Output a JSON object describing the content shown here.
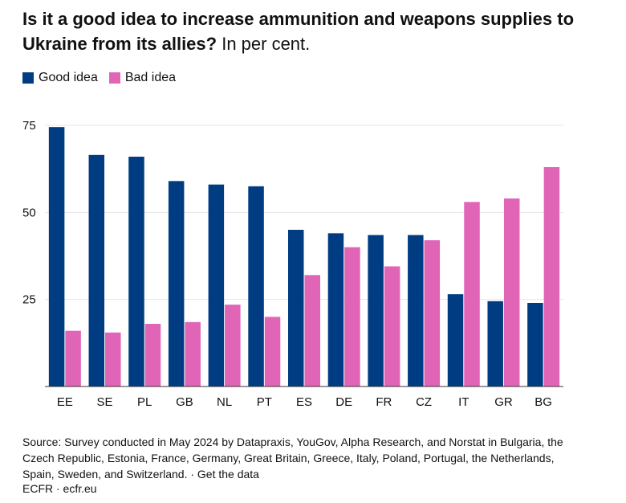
{
  "title_bold": "Is it a good idea to increase ammunition and weapons supplies to Ukraine from its allies?",
  "title_suffix": " In per cent.",
  "legend": {
    "good": "Good idea",
    "bad": "Bad idea"
  },
  "colors": {
    "good": "#003c82",
    "bad": "#e065b7",
    "grid": "#e6e6e6",
    "axis": "#333333"
  },
  "chart_data": {
    "type": "bar",
    "categories": [
      "EE",
      "SE",
      "PL",
      "GB",
      "NL",
      "PT",
      "ES",
      "DE",
      "FR",
      "CZ",
      "IT",
      "GR",
      "BG"
    ],
    "series": [
      {
        "name": "Good idea",
        "values": [
          74.5,
          66.5,
          66,
          59,
          58,
          57.5,
          45,
          44,
          43.5,
          43.5,
          26.5,
          24.5,
          24
        ]
      },
      {
        "name": "Bad idea",
        "values": [
          16,
          15.5,
          18,
          18.5,
          23.5,
          20,
          32,
          40,
          34.5,
          42,
          53,
          54,
          63
        ]
      }
    ],
    "yticks": [
      25,
      50,
      75
    ],
    "ylim": [
      0,
      75
    ],
    "legend_position": "top-left"
  },
  "source": "Source: Survey conducted in May 2024 by Datapraxis, YouGov, Alpha Research, and Norstat in Bulgaria, the Czech Republic, Estonia, France, Germany, Great Britain, Greece, Italy, Poland, Portugal, the Netherlands, Spain, Sweden, and Switzerland. · Get the data",
  "credit": "ECFR · ecfr.eu"
}
